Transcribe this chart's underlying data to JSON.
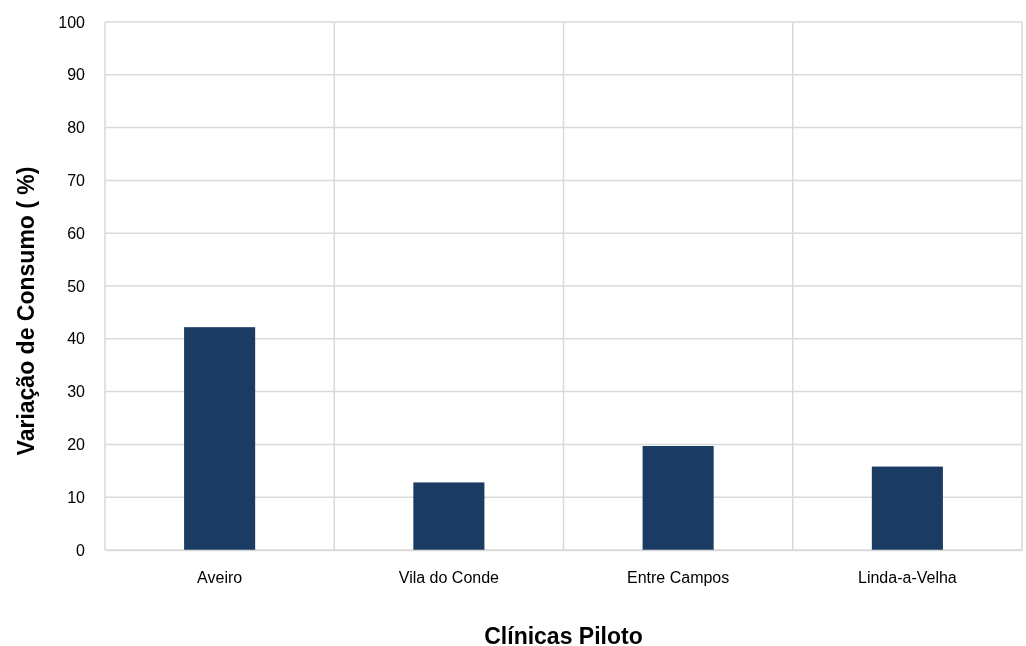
{
  "chart_data": {
    "type": "bar",
    "xlabel": "Clínicas Piloto",
    "ylabel": "Variação de Consumo ( %)",
    "categories": [
      "Aveiro",
      "Vila do Conde",
      "Entre Campos",
      "Linda-a-Velha"
    ],
    "values": [
      42.2,
      12.8,
      19.7,
      15.8
    ],
    "color": "#1a3c63",
    "ylim": [
      0,
      100
    ],
    "yticks": [
      0,
      10,
      20,
      30,
      40,
      50,
      60,
      70,
      80,
      90,
      100
    ],
    "grid": true
  }
}
